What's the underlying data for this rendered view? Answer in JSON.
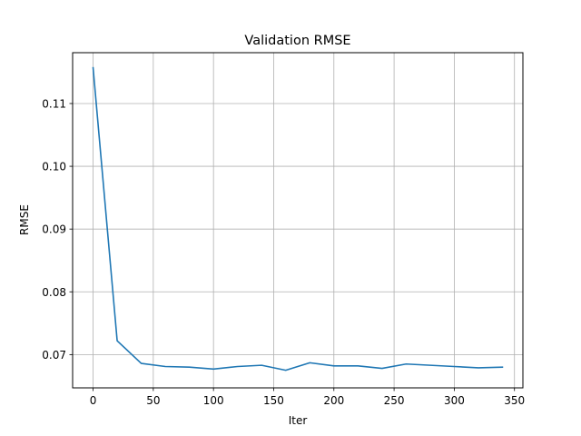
{
  "chart_data": {
    "type": "line",
    "title": "Validation RMSE",
    "xlabel": "Iter",
    "ylabel": "RMSE",
    "xlim": [
      -17,
      357
    ],
    "ylim": [
      0.0647,
      0.1181
    ],
    "xticks": [
      0,
      50,
      100,
      150,
      200,
      250,
      300,
      350
    ],
    "xtick_labels": [
      "0",
      "50",
      "100",
      "150",
      "200",
      "250",
      "300",
      "350"
    ],
    "yticks": [
      0.07,
      0.08,
      0.09,
      0.1,
      0.11
    ],
    "ytick_labels": [
      "0.07",
      "0.08",
      "0.09",
      "0.10",
      "0.11"
    ],
    "grid": true,
    "series": [
      {
        "color": "#1f77b4",
        "x": [
          0,
          20,
          40,
          60,
          80,
          100,
          120,
          140,
          160,
          180,
          200,
          220,
          240,
          260,
          280,
          300,
          320,
          340
        ],
        "y": [
          0.1157,
          0.0722,
          0.0686,
          0.0681,
          0.068,
          0.0677,
          0.0681,
          0.0683,
          0.0675,
          0.0687,
          0.0682,
          0.0682,
          0.0678,
          0.0685,
          0.0683,
          0.0681,
          0.0679,
          0.068
        ]
      }
    ]
  }
}
